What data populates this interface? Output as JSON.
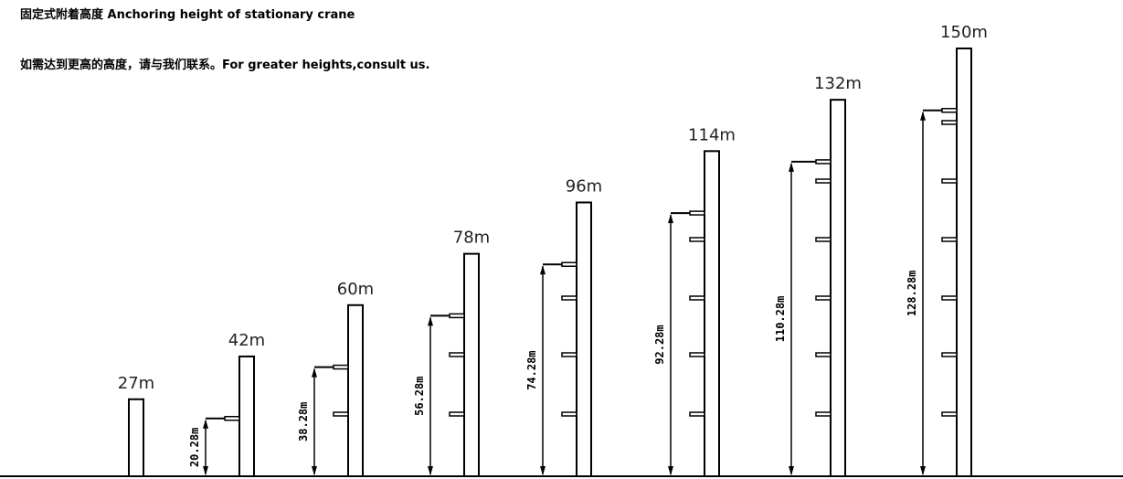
{
  "title": "固定式附着高度 Anchoring height of stationary crane",
  "note": "如需达到更高的高度，请与我们联系。For greater heights,consult us.",
  "units": "m",
  "cranes": [
    {
      "height_label": "27m",
      "anchor_label": "",
      "height": 27,
      "anchor_height": null,
      "collars": 0
    },
    {
      "height_label": "42m",
      "anchor_label": "20.28m",
      "height": 42,
      "anchor_height": 20.28,
      "collars": 1
    },
    {
      "height_label": "60m",
      "anchor_label": "38.28m",
      "height": 60,
      "anchor_height": 38.28,
      "collars": 2
    },
    {
      "height_label": "78m",
      "anchor_label": "56.28m",
      "height": 78,
      "anchor_height": 56.28,
      "collars": 3
    },
    {
      "height_label": "96m",
      "anchor_label": "74.28m",
      "height": 96,
      "anchor_height": 74.28,
      "collars": 4
    },
    {
      "height_label": "114m",
      "anchor_label": "92.28m",
      "height": 114,
      "anchor_height": 92.28,
      "collars": 5
    },
    {
      "height_label": "132m",
      "anchor_label": "110.28m",
      "height": 132,
      "anchor_height": 110.28,
      "collars": 6
    },
    {
      "height_label": "150m",
      "anchor_label": "128.28m",
      "height": 150,
      "anchor_height": 128.28,
      "collars": 7
    }
  ]
}
